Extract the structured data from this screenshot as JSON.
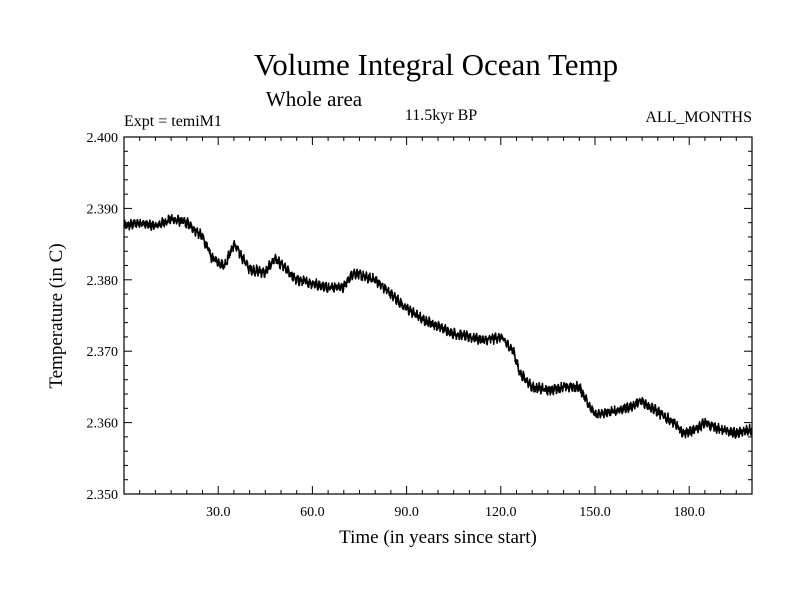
{
  "chart_data": {
    "type": "line",
    "title": "Volume Integral Ocean Temp",
    "subtitle": "Whole area",
    "left_label": "Expt = temiM1",
    "center_label": "11.5kyr BP",
    "right_label": "ALL_MONTHS",
    "xlabel": "Time (in years since start)",
    "ylabel": "Temperature (in C)",
    "xlim": [
      0,
      200
    ],
    "ylim": [
      2.35,
      2.4
    ],
    "x_ticks": [
      30,
      60,
      90,
      120,
      150,
      180
    ],
    "x_tick_labels": [
      "30.0",
      "60.0",
      "90.0",
      "120.0",
      "150.0",
      "180.0"
    ],
    "y_ticks": [
      2.35,
      2.36,
      2.37,
      2.38,
      2.39,
      2.4
    ],
    "y_tick_labels": [
      "2.350",
      "2.360",
      "2.370",
      "2.380",
      "2.390",
      "2.400"
    ],
    "grid": false,
    "series": [
      {
        "name": "Volume Integral Ocean Temp",
        "trend_x": [
          0,
          5,
          10,
          15,
          20,
          25,
          28,
          32,
          35,
          40,
          45,
          48,
          55,
          60,
          65,
          70,
          73,
          76,
          80,
          85,
          90,
          95,
          100,
          105,
          110,
          115,
          120,
          124,
          126,
          130,
          135,
          140,
          145,
          150,
          155,
          160,
          165,
          170,
          175,
          178,
          182,
          185,
          190,
          195,
          200
        ],
        "trend_y": [
          2.3875,
          2.388,
          2.3875,
          2.3885,
          2.388,
          2.386,
          2.383,
          2.382,
          2.385,
          2.3815,
          2.381,
          2.383,
          2.38,
          2.3795,
          2.379,
          2.379,
          2.381,
          2.3805,
          2.38,
          2.378,
          2.376,
          2.3745,
          2.3735,
          2.3725,
          2.372,
          2.3715,
          2.372,
          2.37,
          2.367,
          2.365,
          2.3645,
          2.365,
          2.365,
          2.361,
          2.3615,
          2.362,
          2.363,
          2.3615,
          2.36,
          2.3585,
          2.359,
          2.36,
          2.359,
          2.3585,
          2.359
        ],
        "noise_amplitude": 0.0006,
        "color": "#000000"
      }
    ]
  }
}
